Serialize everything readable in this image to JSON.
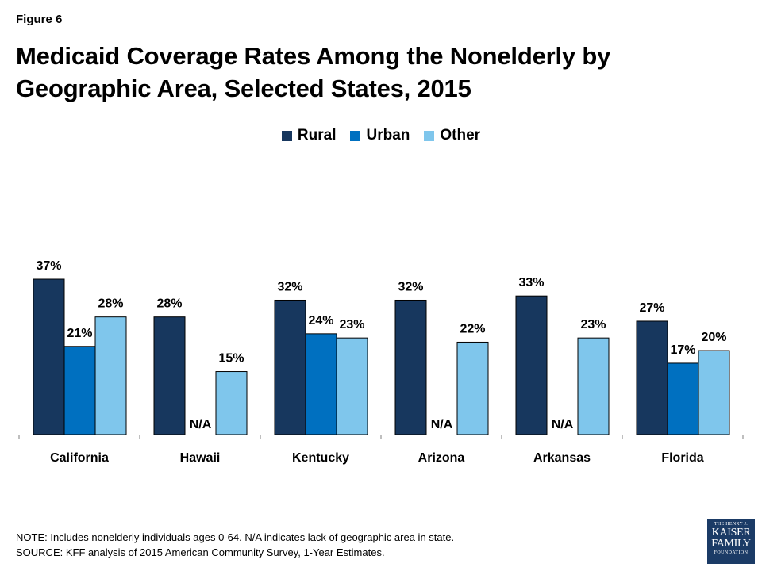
{
  "figure_label": "Figure 6",
  "title": "Medicaid Coverage Rates Among the Nonelderly by Geographic Area, Selected States, 2015",
  "notes": {
    "note": "NOTE: Includes nonelderly individuals ages 0-64. N/A indicates lack of geographic area in state.",
    "source": "SOURCE: KFF analysis of 2015 American Community Survey, 1-Year Estimates."
  },
  "logo": {
    "line1": "THE HENRY J.",
    "line2": "KAISER",
    "line3": "FAMILY",
    "line4": "FOUNDATION"
  },
  "chart_data": {
    "type": "bar",
    "categories": [
      "California",
      "Hawaii",
      "Kentucky",
      "Arizona",
      "Arkansas",
      "Florida"
    ],
    "series": [
      {
        "name": "Rural",
        "color": "#17375e",
        "values": [
          37,
          28,
          32,
          32,
          33,
          27
        ],
        "labels": [
          "37%",
          "28%",
          "32%",
          "32%",
          "33%",
          "27%"
        ]
      },
      {
        "name": "Urban",
        "color": "#0070c0",
        "values": [
          21,
          null,
          24,
          null,
          null,
          17
        ],
        "labels": [
          "21%",
          "N/A",
          "24%",
          "N/A",
          "N/A",
          "17%"
        ]
      },
      {
        "name": "Other",
        "color": "#7fc6ec",
        "values": [
          28,
          15,
          23,
          22,
          23,
          20
        ],
        "labels": [
          "28%",
          "15%",
          "23%",
          "22%",
          "23%",
          "20%"
        ]
      }
    ],
    "ylim": [
      0,
      37
    ],
    "legend": "top-center",
    "grid": false
  }
}
